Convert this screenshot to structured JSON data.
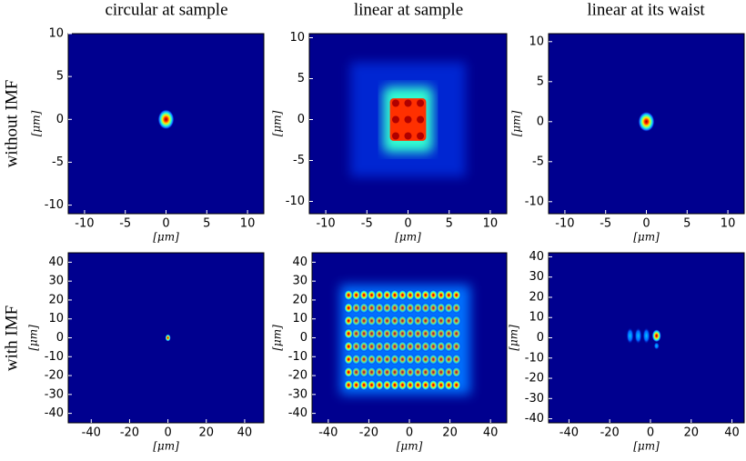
{
  "column_titles": [
    "circular at sample",
    "linear at sample",
    "linear at its waist"
  ],
  "row_labels": [
    "without IMF",
    "with IMF"
  ],
  "chart_data": [
    {
      "type": "heatmap",
      "xlim": [
        -12,
        12
      ],
      "ylim": [
        -11,
        10
      ],
      "xticks": [
        -10,
        -5,
        0,
        5,
        10
      ],
      "yticks": [
        -10,
        -5,
        0,
        5,
        10
      ],
      "xlabel": "[μm]",
      "ylabel": "[μm]"
    },
    {
      "type": "heatmap",
      "xlim": [
        -12,
        12
      ],
      "ylim": [
        -11.5,
        10.5
      ],
      "xticks": [
        -10,
        -5,
        0,
        5,
        10
      ],
      "yticks": [
        -10,
        -5,
        0,
        5,
        10
      ],
      "xlabel": "[μm]",
      "ylabel": "[μm]"
    },
    {
      "type": "heatmap",
      "xlim": [
        -12,
        12
      ],
      "ylim": [
        -11.5,
        11
      ],
      "xticks": [
        -10,
        -5,
        0,
        5,
        10
      ],
      "yticks": [
        -10,
        -5,
        0,
        5,
        10
      ],
      "xlabel": "[μm]",
      "ylabel": "[μm]"
    },
    {
      "type": "heatmap",
      "xlim": [
        -52,
        50
      ],
      "ylim": [
        -45,
        45
      ],
      "xticks": [
        -40,
        -20,
        0,
        20,
        40
      ],
      "yticks": [
        -40,
        -30,
        -20,
        -10,
        0,
        10,
        20,
        30,
        40
      ],
      "xlabel": "[μm]",
      "ylabel": "[μm]"
    },
    {
      "type": "heatmap",
      "xlim": [
        -48,
        48
      ],
      "ylim": [
        -45,
        45
      ],
      "xticks": [
        -40,
        -20,
        0,
        20,
        40
      ],
      "yticks": [
        -40,
        -30,
        -20,
        -10,
        0,
        10,
        20,
        30,
        40
      ],
      "xlabel": "[μm]",
      "ylabel": "[μm]"
    },
    {
      "type": "heatmap",
      "xlim": [
        -50,
        46
      ],
      "ylim": [
        -42,
        42
      ],
      "xticks": [
        -40,
        -20,
        0,
        20,
        40
      ],
      "yticks": [
        -40,
        -30,
        -20,
        -10,
        0,
        10,
        20,
        30,
        40
      ],
      "xlabel": "[μm]",
      "ylabel": "[μm]"
    }
  ]
}
